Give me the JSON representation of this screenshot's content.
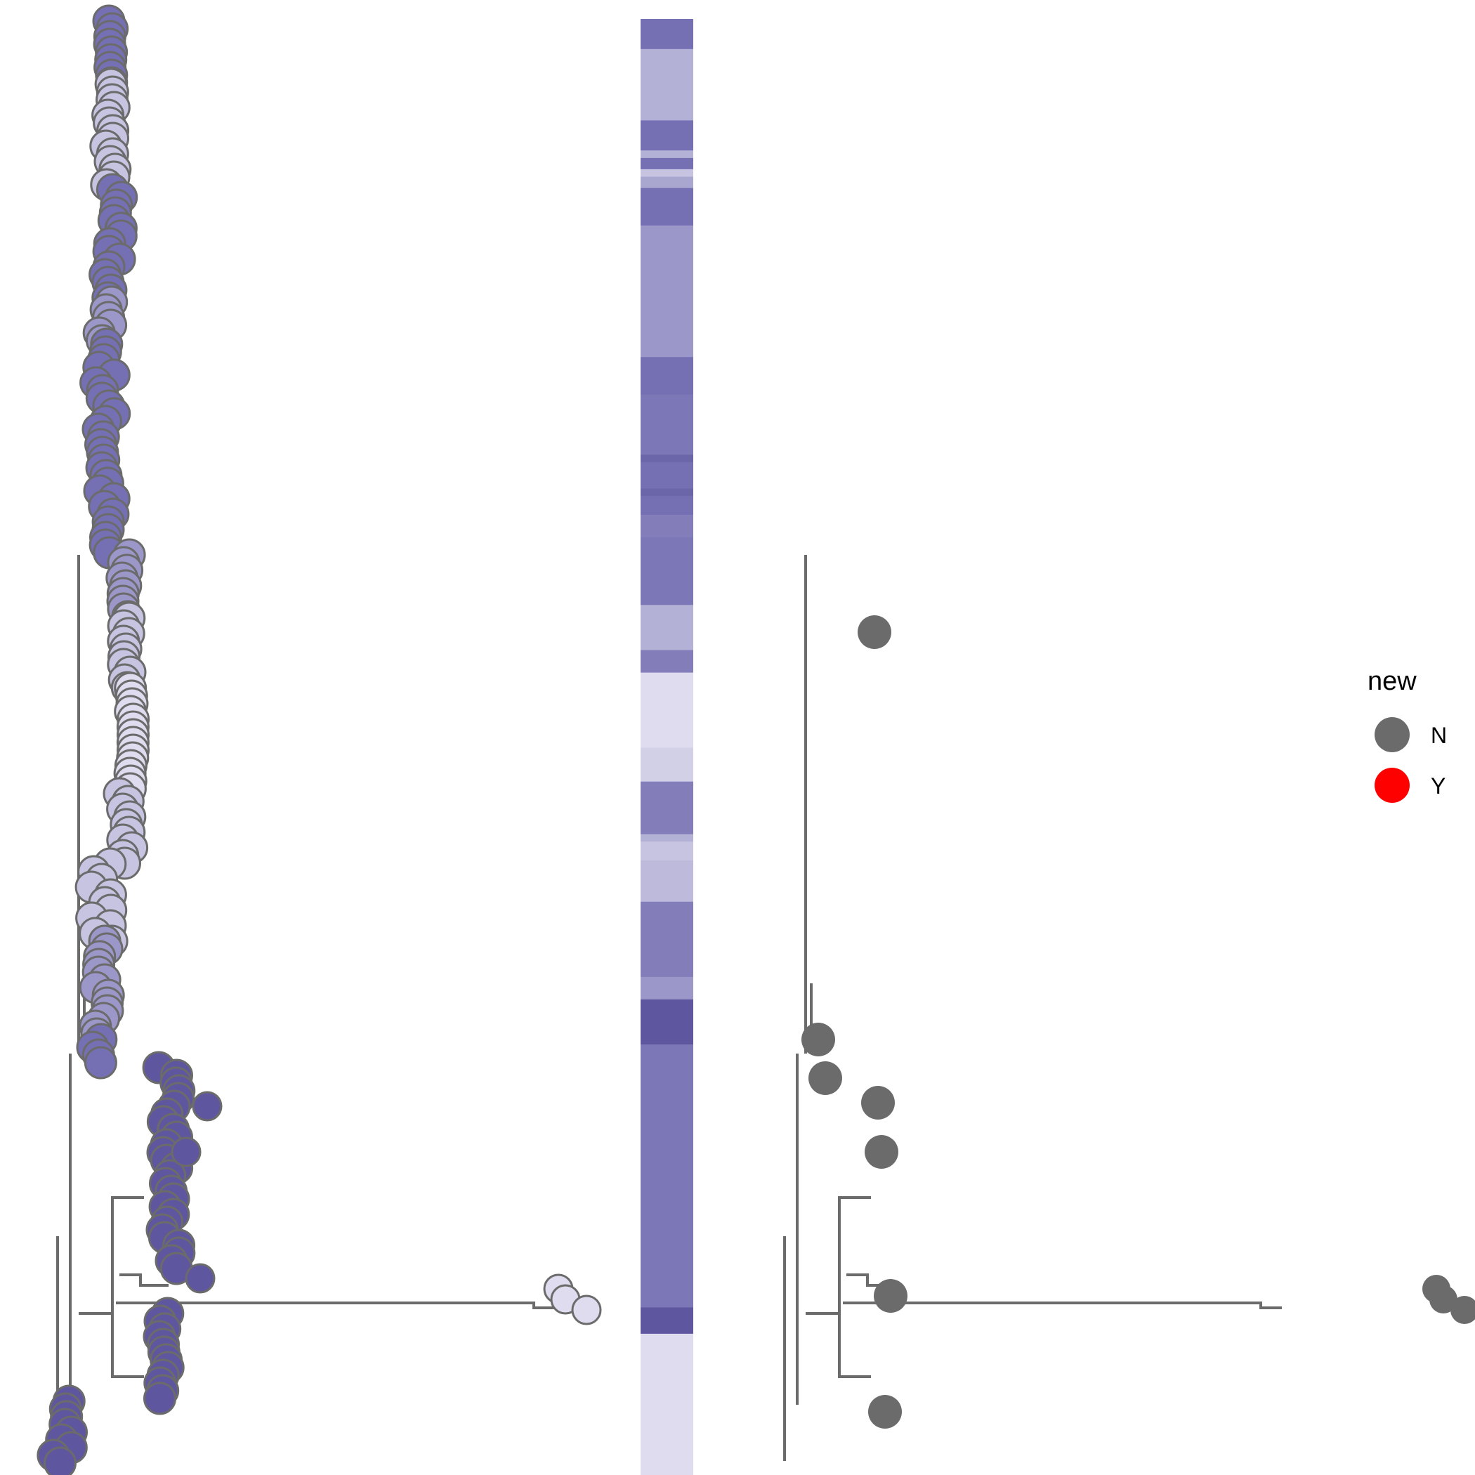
{
  "legend": {
    "title": "new",
    "items": [
      {
        "label": "N",
        "color": "#6b6b6b"
      },
      {
        "label": "Y",
        "color": "#ff0000"
      }
    ]
  },
  "colors": {
    "branch": "#6b6b6b",
    "tip_outline": "#6b6b6b",
    "purple_dark": "#5f56a0",
    "purple_mid": "#7570b3",
    "purple_light": "#9c97c9",
    "purple_pale": "#c7c4e1",
    "purple_palest": "#dedcee",
    "new_Y": "#ff0000",
    "new_N": "#6b6b6b"
  },
  "heatmap_stripe_colors": [
    "#7570b3",
    "#b4b1d6",
    "#7570b3",
    "#b4b1d6",
    "#7570b3",
    "#c7c4e1",
    "#a9a6cf",
    "#7570b3",
    "#9c97c9",
    "#7570b3",
    "#7c77b6",
    "#6b65aa",
    "#7570b3",
    "#6b65aa",
    "#7570b3",
    "#837eba",
    "#7c77b6",
    "#b4b1d6",
    "#837eba",
    "#dedcee",
    "#d2d0e7",
    "#837eba",
    "#b4b1d6",
    "#c7c4e1",
    "#bdbadc",
    "#837eba",
    "#9c97c9",
    "#5f56a0",
    "#7c77b6",
    "#5f56a0",
    "#dedcee",
    "#5f56a0"
  ]
}
